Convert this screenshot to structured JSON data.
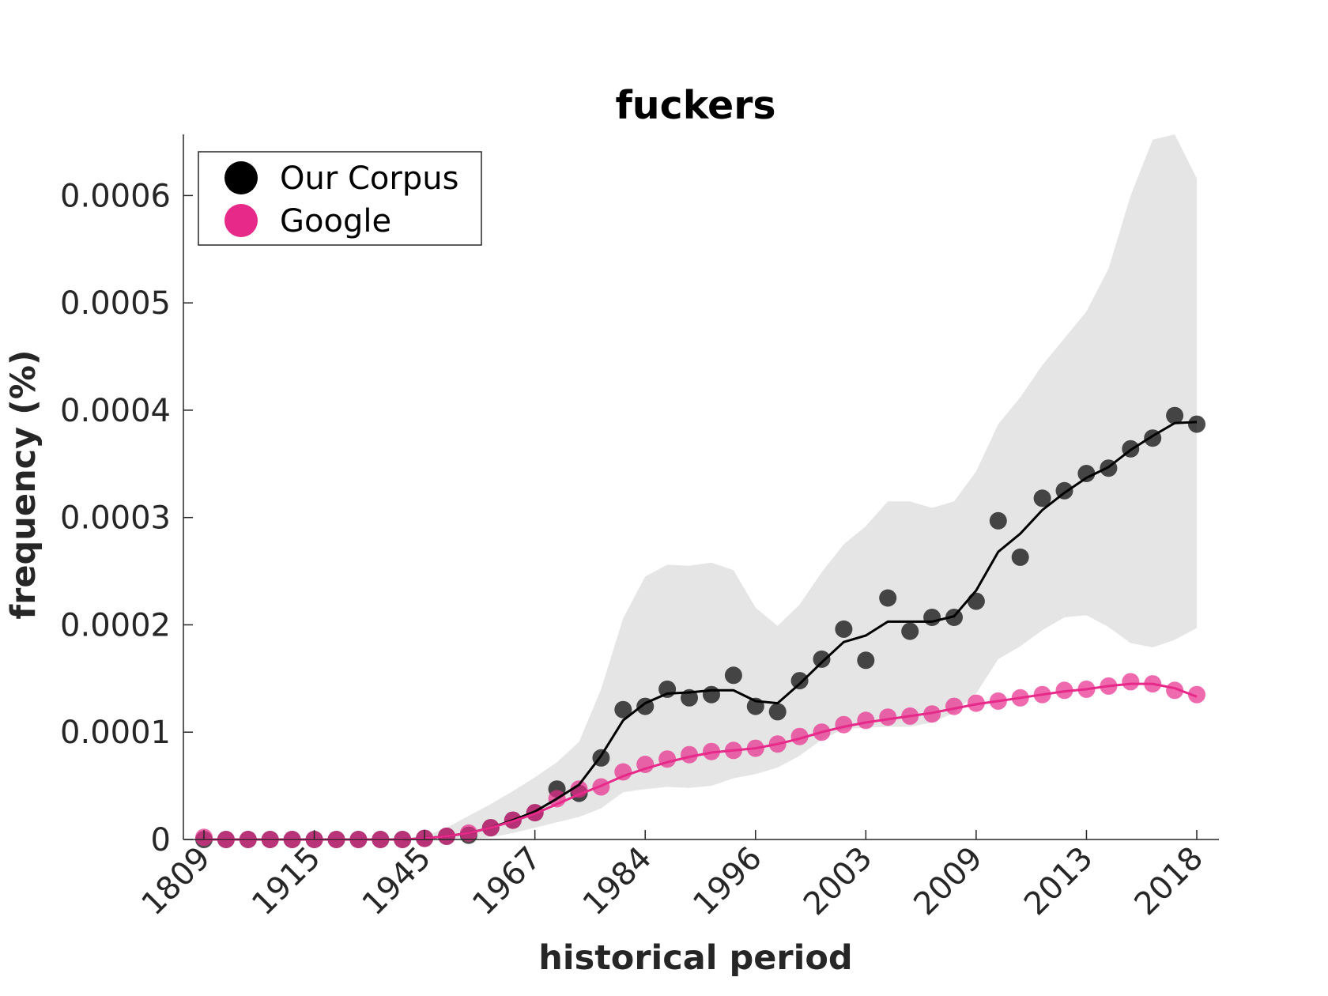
{
  "chart_data": {
    "type": "line",
    "title": "fuckers",
    "xlabel": "historical period",
    "ylabel": "frequency (%)",
    "x_tick_labels": [
      "1809",
      "1915",
      "1945",
      "1967",
      "1984",
      "1996",
      "2003",
      "2009",
      "2013",
      "2018"
    ],
    "y_ticks": [
      0,
      0.0001,
      0.0002,
      0.0003,
      0.0004,
      0.0005,
      0.0006
    ],
    "y_tick_labels": [
      "0",
      "0.0001",
      "0.0002",
      "0.0003",
      "0.0004",
      "0.0005",
      "0.0006"
    ],
    "ylim": [
      0,
      0.000657
    ],
    "n_points": 46,
    "legend": {
      "position": "top-left",
      "entries": [
        "Our Corpus",
        "Google"
      ]
    },
    "colors": {
      "our_corpus": "#000000",
      "google": "#e7298a",
      "band": "#e5e5e5"
    },
    "series": [
      {
        "name": "Our Corpus",
        "points": [
          0,
          0,
          0,
          0,
          0,
          0,
          0,
          0,
          0,
          0,
          1e-06,
          3e-06,
          4e-06,
          1.1e-05,
          1.8e-05,
          2.5e-05,
          4.7e-05,
          4.3e-05,
          7.6e-05,
          0.000121,
          0.000124,
          0.00014,
          0.000132,
          0.000135,
          0.000153,
          0.000124,
          0.000119,
          0.000148,
          0.000168,
          0.000196,
          0.000167,
          0.000225,
          0.000194,
          0.000207,
          0.000207,
          0.000222,
          0.000297,
          0.000263,
          0.000318,
          0.000325,
          0.000341,
          0.000346,
          0.000364,
          0.000374,
          0.000395,
          0.000387
        ],
        "smoothed": [
          0,
          0,
          0,
          0,
          0,
          0,
          0,
          0,
          0,
          0,
          1e-06,
          3e-06,
          6e-06,
          1.1e-05,
          1.8e-05,
          2.6e-05,
          3.8e-05,
          5.1e-05,
          7.8e-05,
          0.000111,
          0.000127,
          0.000136,
          0.000137,
          0.000139,
          0.000139,
          0.000129,
          0.000127,
          0.000145,
          0.000165,
          0.000184,
          0.00019,
          0.000203,
          0.000203,
          0.000203,
          0.000208,
          0.000232,
          0.000268,
          0.000285,
          0.000307,
          0.000323,
          0.000337,
          0.000347,
          0.000363,
          0.000376,
          0.000388,
          0.000389
        ],
        "band_upper": [
          0,
          0,
          0,
          0,
          0,
          0,
          0,
          0,
          0,
          0,
          3e-06,
          1.1e-05,
          2.2e-05,
          3.3e-05,
          4.5e-05,
          5.8e-05,
          7.2e-05,
          9.1e-05,
          0.00014,
          0.000206,
          0.000245,
          0.000256,
          0.000255,
          0.000258,
          0.000251,
          0.000216,
          0.000199,
          0.000219,
          0.000249,
          0.000275,
          0.000292,
          0.000315,
          0.000315,
          0.000309,
          0.000315,
          0.000343,
          0.000387,
          0.000412,
          0.000442,
          0.000467,
          0.000492,
          0.000532,
          0.0006,
          0.000652,
          0.000657,
          0.000616
        ],
        "band_lower": [
          0,
          0,
          0,
          0,
          0,
          0,
          0,
          0,
          0,
          0,
          0,
          0,
          0,
          2e-06,
          6e-06,
          1.1e-05,
          1.6e-05,
          2.1e-05,
          2.9e-05,
          4.4e-05,
          4.7e-05,
          4.9e-05,
          4.8e-05,
          5e-05,
          5.7e-05,
          6.1e-05,
          6.7e-05,
          7.8e-05,
          9.3e-05,
          0.000103,
          0.000104,
          0.000105,
          0.000105,
          0.000109,
          0.000118,
          0.000136,
          0.000168,
          0.00018,
          0.000195,
          0.000207,
          0.000209,
          0.000198,
          0.000183,
          0.000179,
          0.000186,
          0.000197
        ]
      },
      {
        "name": "Google",
        "points": [
          2e-06,
          0,
          0,
          0,
          0,
          0,
          0,
          0,
          0,
          0,
          1e-06,
          3e-06,
          6e-06,
          1.1e-05,
          1.8e-05,
          2.5e-05,
          3.8e-05,
          4.7e-05,
          4.9e-05,
          6.3e-05,
          7e-05,
          7.5e-05,
          7.9e-05,
          8.2e-05,
          8.3e-05,
          8.5e-05,
          8.9e-05,
          9.6e-05,
          0.0001,
          0.000107,
          0.000111,
          0.000114,
          0.000115,
          0.000117,
          0.000124,
          0.000127,
          0.000129,
          0.000132,
          0.000135,
          0.000139,
          0.00014,
          0.000143,
          0.000147,
          0.000145,
          0.000139,
          0.000135
        ],
        "smoothed": [
          0,
          0,
          0,
          0,
          0,
          0,
          0,
          0,
          0,
          0,
          1e-06,
          3e-06,
          6e-06,
          1.1e-05,
          1.7e-05,
          2.4e-05,
          3.3e-05,
          4.2e-05,
          5e-05,
          5.9e-05,
          6.6e-05,
          7.2e-05,
          7.7e-05,
          8.1e-05,
          8.3e-05,
          8.5e-05,
          8.9e-05,
          9.4e-05,
          0.0001,
          0.000105,
          0.000109,
          0.000112,
          0.000115,
          0.000118,
          0.000122,
          0.000126,
          0.000129,
          0.000132,
          0.000135,
          0.000138,
          0.00014,
          0.000143,
          0.000145,
          0.000145,
          0.000141,
          0.000133
        ]
      }
    ]
  }
}
